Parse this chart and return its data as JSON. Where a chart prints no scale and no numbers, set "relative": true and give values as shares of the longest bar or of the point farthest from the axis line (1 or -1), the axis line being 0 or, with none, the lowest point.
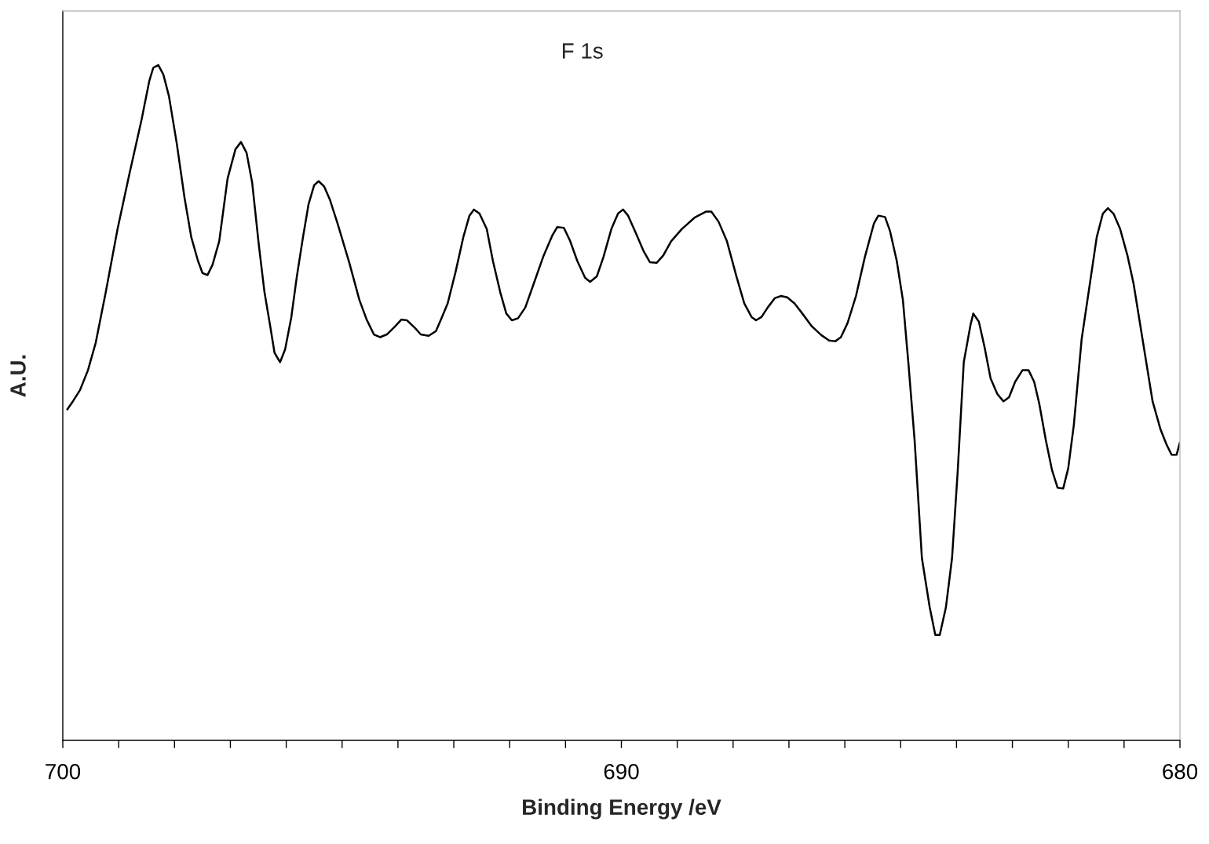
{
  "chart_data": {
    "type": "line",
    "relative": true,
    "xlabel": "Binding Energy /eV",
    "ylabel": "A.U.",
    "annotations": [
      "F 1s"
    ],
    "xlim": [
      700,
      680
    ],
    "xticks": [
      700,
      {
        "value": 699,
        "label": null
      },
      {
        "value": 698,
        "label": null
      },
      {
        "value": 697,
        "label": null
      },
      {
        "value": 696,
        "label": null
      },
      {
        "value": 695,
        "label": null
      },
      {
        "value": 694,
        "label": null
      },
      {
        "value": 693,
        "label": null
      },
      {
        "value": 692,
        "label": null
      },
      {
        "value": 691,
        "label": null
      },
      690,
      {
        "value": 689,
        "label": null
      },
      {
        "value": 688,
        "label": null
      },
      {
        "value": 687,
        "label": null
      },
      {
        "value": 686,
        "label": null
      },
      {
        "value": 685,
        "label": null
      },
      {
        "value": 684,
        "label": null
      },
      {
        "value": 683,
        "label": null
      },
      {
        "value": 682,
        "label": null
      },
      {
        "value": 681,
        "label": null
      },
      680
    ],
    "grid": false,
    "marker": "none",
    "line_style": "solid",
    "series": [
      {
        "color": "#000000",
        "x": [
          699.92,
          699.82,
          699.69,
          699.55,
          699.41,
          699.23,
          699.02,
          698.81,
          698.59,
          698.45,
          698.38,
          698.29,
          698.2,
          698.1,
          697.96,
          697.82,
          697.7,
          697.58,
          697.5,
          697.41,
          697.32,
          697.2,
          697.05,
          696.91,
          696.81,
          696.71,
          696.61,
          696.49,
          696.39,
          696.29,
          696.21,
          696.11,
          696.02,
          695.91,
          695.81,
          695.7,
          695.6,
          695.5,
          695.42,
          695.32,
          695.22,
          695.08,
          694.87,
          694.69,
          694.56,
          694.43,
          694.32,
          694.2,
          694.05,
          693.94,
          693.84,
          693.7,
          693.59,
          693.45,
          693.32,
          693.23,
          693.11,
          692.97,
          692.83,
          692.72,
          692.64,
          692.54,
          692.41,
          692.3,
          692.17,
          692.06,
          691.96,
          691.85,
          691.72,
          691.57,
          691.4,
          691.24,
          691.15,
          691.03,
          690.92,
          690.79,
          690.65,
          690.56,
          690.44,
          690.32,
          690.18,
          690.06,
          689.97,
          689.88,
          689.74,
          689.6,
          689.49,
          689.37,
          689.25,
          689.11,
          688.92,
          688.69,
          688.48,
          688.39,
          688.26,
          688.11,
          687.94,
          687.8,
          687.67,
          687.59,
          687.49,
          687.38,
          687.25,
          687.14,
          687.03,
          686.9,
          686.76,
          686.59,
          686.42,
          686.28,
          686.17,
          686.07,
          685.95,
          685.8,
          685.64,
          685.48,
          685.4,
          685.28,
          685.19,
          685.07,
          684.96,
          684.86,
          684.75,
          684.62,
          684.48,
          684.38,
          684.3,
          684.19,
          684.08,
          683.98,
          683.87,
          683.75,
          683.7,
          683.6,
          683.5,
          683.39,
          683.27,
          683.16,
          683.06,
          682.95,
          682.82,
          682.71,
          682.61,
          682.52,
          682.4,
          682.29,
          682.19,
          682.09,
          682.0,
          681.9,
          681.76,
          681.59,
          681.49,
          681.38,
          681.29,
          681.19,
          681.07,
          680.94,
          680.83,
          680.67,
          680.49,
          680.35,
          680.24,
          680.15,
          680.06,
          680.0
        ],
        "values": [
          0.49,
          0.502,
          0.519,
          0.548,
          0.589,
          0.664,
          0.757,
          0.838,
          0.919,
          0.977,
          0.996,
          1,
          0.986,
          0.954,
          0.884,
          0.803,
          0.745,
          0.71,
          0.692,
          0.689,
          0.704,
          0.739,
          0.832,
          0.875,
          0.886,
          0.87,
          0.826,
          0.733,
          0.664,
          0.615,
          0.574,
          0.56,
          0.579,
          0.626,
          0.687,
          0.745,
          0.794,
          0.822,
          0.828,
          0.82,
          0.801,
          0.765,
          0.707,
          0.652,
          0.623,
          0.601,
          0.597,
          0.601,
          0.613,
          0.623,
          0.622,
          0.611,
          0.601,
          0.599,
          0.606,
          0.623,
          0.647,
          0.693,
          0.745,
          0.777,
          0.786,
          0.78,
          0.757,
          0.71,
          0.664,
          0.632,
          0.622,
          0.625,
          0.641,
          0.676,
          0.716,
          0.747,
          0.76,
          0.759,
          0.74,
          0.71,
          0.685,
          0.679,
          0.687,
          0.716,
          0.757,
          0.78,
          0.786,
          0.777,
          0.751,
          0.724,
          0.708,
          0.707,
          0.718,
          0.739,
          0.757,
          0.774,
          0.783,
          0.783,
          0.768,
          0.739,
          0.687,
          0.647,
          0.627,
          0.622,
          0.627,
          0.641,
          0.655,
          0.658,
          0.656,
          0.647,
          0.632,
          0.613,
          0.6,
          0.592,
          0.591,
          0.597,
          0.618,
          0.658,
          0.716,
          0.765,
          0.777,
          0.775,
          0.754,
          0.71,
          0.652,
          0.557,
          0.444,
          0.27,
          0.197,
          0.156,
          0.156,
          0.197,
          0.27,
          0.397,
          0.56,
          0.615,
          0.632,
          0.62,
          0.583,
          0.536,
          0.513,
          0.502,
          0.508,
          0.531,
          0.548,
          0.548,
          0.531,
          0.499,
          0.444,
          0.4,
          0.374,
          0.373,
          0.403,
          0.467,
          0.594,
          0.689,
          0.745,
          0.78,
          0.788,
          0.78,
          0.757,
          0.718,
          0.676,
          0.594,
          0.502,
          0.461,
          0.438,
          0.423,
          0.423,
          0.441
        ]
      }
    ]
  }
}
